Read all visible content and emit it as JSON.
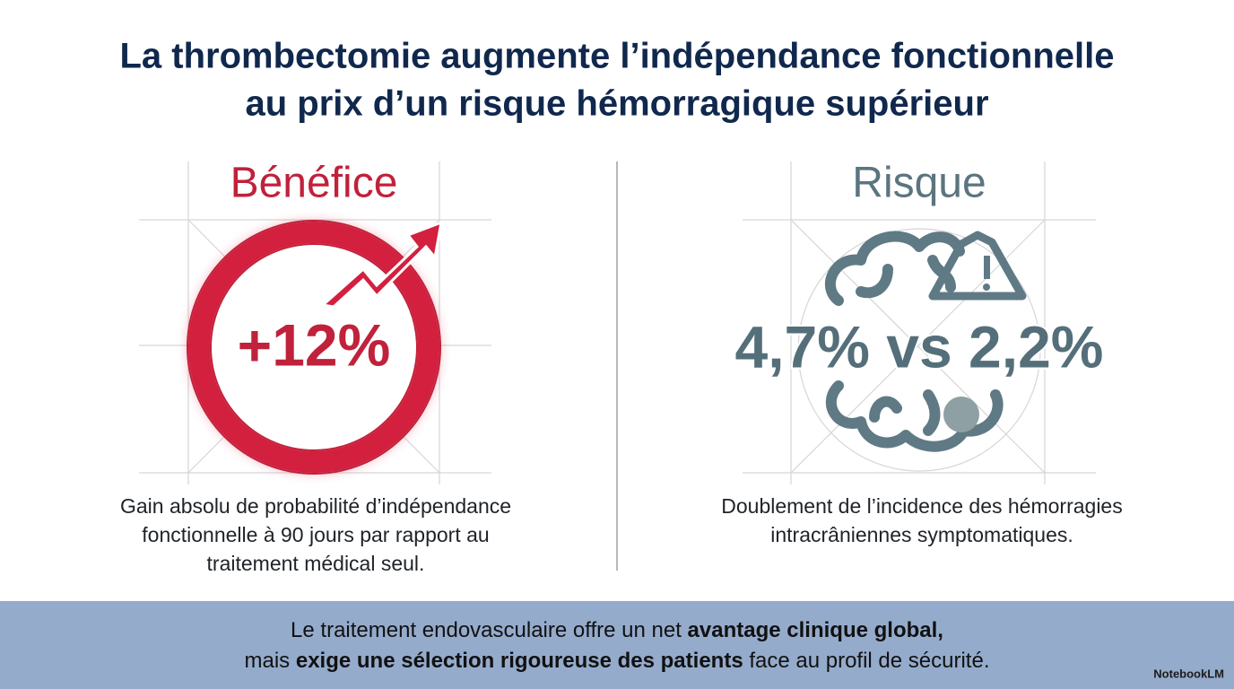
{
  "title": {
    "lines": [
      "La thrombectomie augmente l’indépendance fonctionnelle",
      "au prix d’un risque hémorragique supérieur"
    ]
  },
  "benefit": {
    "heading": "Bénéfice",
    "figure": "+12%",
    "description": [
      "Gain absolu de probabilité d’indépendance",
      "fonctionnelle à 90 jours par rapport au",
      "traitement médical seul."
    ]
  },
  "risk": {
    "heading": "Risque",
    "figure": "4,7% vs 2,2%",
    "description": [
      "Doublement de l’incidence des hémorragies",
      "intracrâniennes symptomatiques."
    ]
  },
  "footer": {
    "lines": [
      [
        {
          "text": "Le traitement endovasculaire offre un net ",
          "bold": false
        },
        {
          "text": "avantage clinique global,",
          "bold": true
        }
      ],
      [
        {
          "text": "mais ",
          "bold": false
        },
        {
          "text": "exige une sélection rigoureuse des patients",
          "bold": true
        },
        {
          "text": " face au profil de sécurité.",
          "bold": false
        }
      ]
    ]
  },
  "brand": "NotebookLM"
}
